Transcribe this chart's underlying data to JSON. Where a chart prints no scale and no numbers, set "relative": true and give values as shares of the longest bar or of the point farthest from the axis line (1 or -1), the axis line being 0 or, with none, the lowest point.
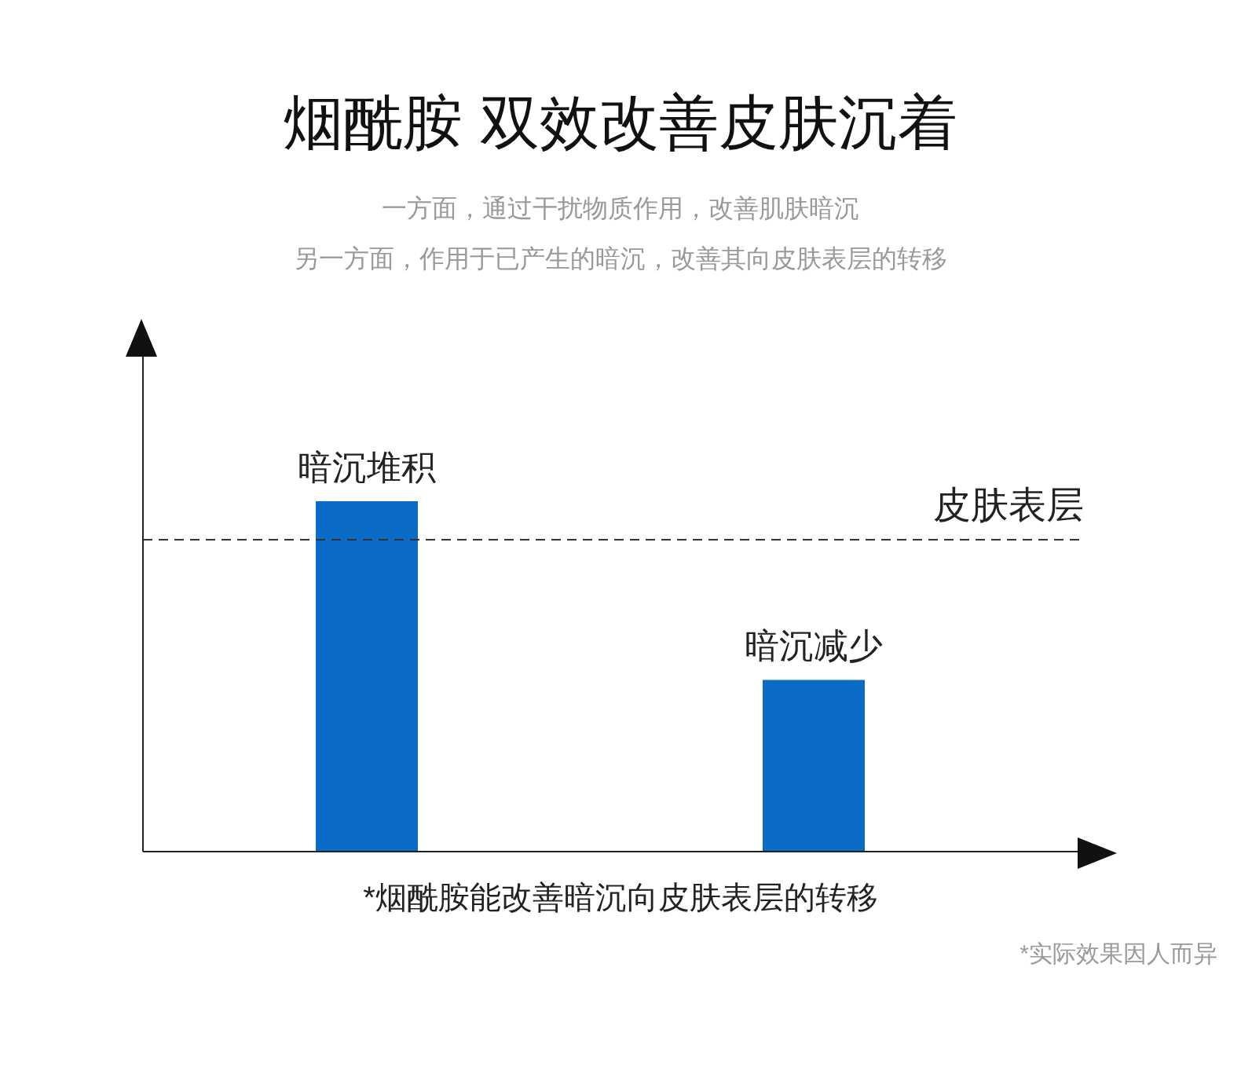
{
  "chart_data": {
    "type": "bar",
    "title": "烟酰胺 双效改善皮肤沉着",
    "subtitle": "一方面，通过干扰物质作用，改善肌肤暗沉",
    "categories": [
      "暗沉堆积",
      "暗沉减少"
    ],
    "values": [
      1,
      0.49
    ],
    "color": "#0a6cc6",
    "relative": true,
    "ref_lines": [
      {
        "axis": "y",
        "value": 0.89,
        "label": "皮肤表层",
        "color": "#333333",
        "line_style": "dashed"
      }
    ],
    "annotations": [
      "另一方面，作用于已产生的暗沉，改善其向皮肤表层的转移",
      "*烟酰胺能改善暗沉向皮肤表层的转移",
      "*实际效果因人而异"
    ]
  }
}
